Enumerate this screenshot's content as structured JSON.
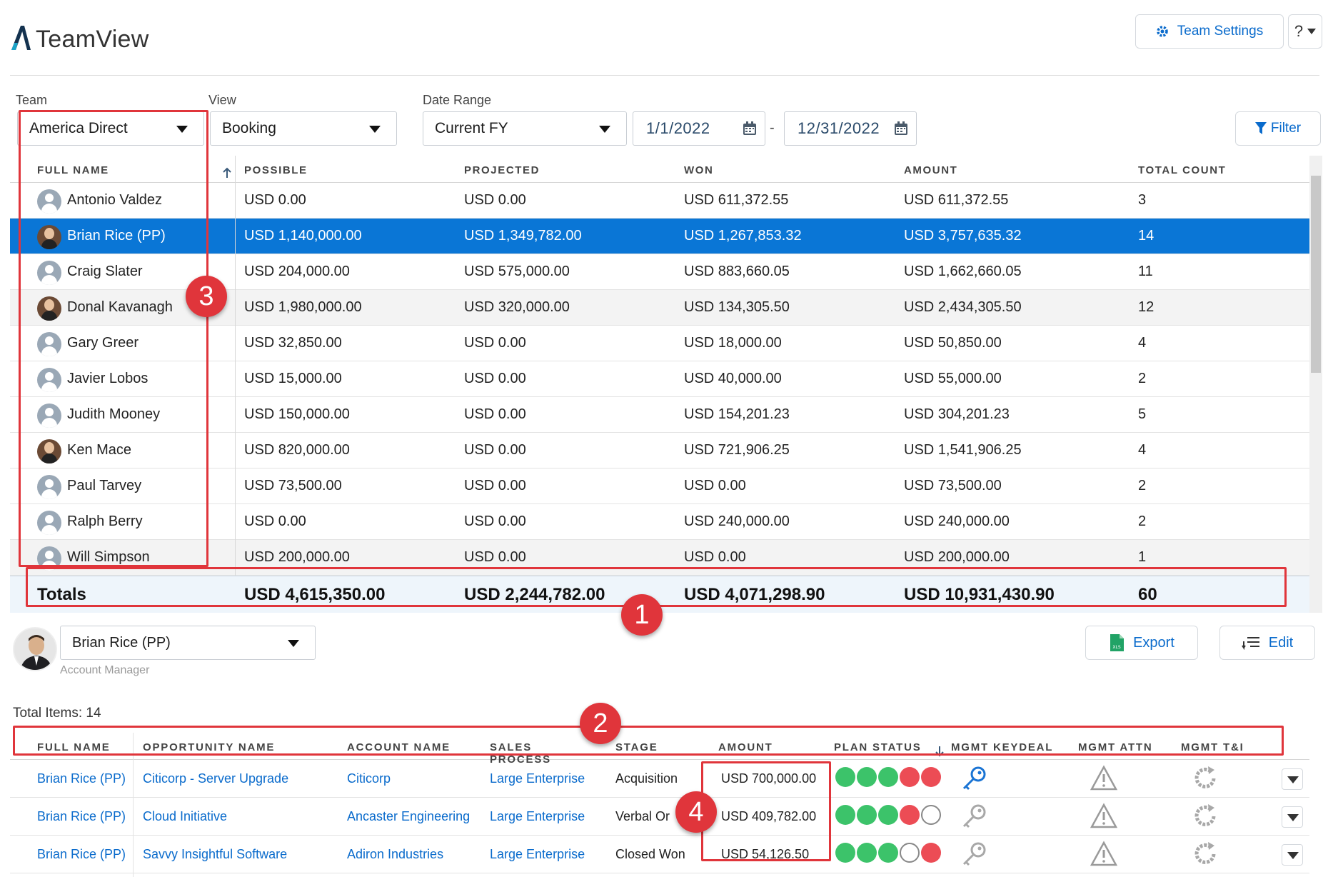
{
  "app": {
    "title": "TeamView"
  },
  "header": {
    "team_settings_label": "Team Settings",
    "help_label": "?"
  },
  "filters": {
    "team_label": "Team",
    "team_value": "America Direct",
    "view_label": "View",
    "view_value": "Booking",
    "date_range_label": "Date Range",
    "date_range_value": "Current FY",
    "date_from": "1/1/2022",
    "date_sep": "-",
    "date_to": "12/31/2022",
    "filter_label": "Filter"
  },
  "grid": {
    "columns": [
      "FULL NAME",
      "POSSIBLE",
      "PROJECTED",
      "WON",
      "AMOUNT",
      "TOTAL COUNT"
    ],
    "rows": [
      {
        "name": "Antonio Valdez",
        "possible": "USD 0.00",
        "projected": "USD 0.00",
        "won": "USD 611,372.55",
        "amount": "USD 611,372.55",
        "count": "3"
      },
      {
        "name": "Brian Rice (PP)",
        "possible": "USD 1,140,000.00",
        "projected": "USD 1,349,782.00",
        "won": "USD 1,267,853.32",
        "amount": "USD 3,757,635.32",
        "count": "14"
      },
      {
        "name": "Craig Slater",
        "possible": "USD 204,000.00",
        "projected": "USD 575,000.00",
        "won": "USD 883,660.05",
        "amount": "USD 1,662,660.05",
        "count": "11"
      },
      {
        "name": "Donal Kavanagh",
        "possible": "USD 1,980,000.00",
        "projected": "USD 320,000.00",
        "won": "USD 134,305.50",
        "amount": "USD 2,434,305.50",
        "count": "12"
      },
      {
        "name": "Gary Greer",
        "possible": "USD 32,850.00",
        "projected": "USD 0.00",
        "won": "USD 18,000.00",
        "amount": "USD 50,850.00",
        "count": "4"
      },
      {
        "name": "Javier Lobos",
        "possible": "USD 15,000.00",
        "projected": "USD 0.00",
        "won": "USD 40,000.00",
        "amount": "USD 55,000.00",
        "count": "2"
      },
      {
        "name": "Judith Mooney",
        "possible": "USD 150,000.00",
        "projected": "USD 0.00",
        "won": "USD 154,201.23",
        "amount": "USD 304,201.23",
        "count": "5"
      },
      {
        "name": "Ken Mace",
        "possible": "USD 820,000.00",
        "projected": "USD 0.00",
        "won": "USD 721,906.25",
        "amount": "USD 1,541,906.25",
        "count": "4"
      },
      {
        "name": "Paul Tarvey",
        "possible": "USD 73,500.00",
        "projected": "USD 0.00",
        "won": "USD 0.00",
        "amount": "USD 73,500.00",
        "count": "2"
      },
      {
        "name": "Ralph Berry",
        "possible": "USD 0.00",
        "projected": "USD 0.00",
        "won": "USD 240,000.00",
        "amount": "USD 240,000.00",
        "count": "2"
      },
      {
        "name": "Will Simpson",
        "possible": "USD 200,000.00",
        "projected": "USD 0.00",
        "won": "USD 0.00",
        "amount": "USD 200,000.00",
        "count": "1"
      }
    ],
    "totals": {
      "label": "Totals",
      "possible": "USD 4,615,350.00",
      "projected": "USD 2,244,782.00",
      "won": "USD 4,071,298.90",
      "amount": "USD 10,931,430.90",
      "count": "60"
    }
  },
  "annotations": {
    "one": "1",
    "two": "2",
    "three": "3",
    "four": "4"
  },
  "detail": {
    "selected_user": "Brian Rice (PP)",
    "role": "Account Manager",
    "export_label": "Export",
    "edit_label": "Edit",
    "total_items": "Total Items: 14",
    "columns": [
      "FULL NAME",
      "OPPORTUNITY NAME",
      "ACCOUNT NAME",
      "SALES PROCESS",
      "STAGE",
      "AMOUNT",
      "PLAN STATUS",
      "MGMT KEYDEAL",
      "MGMT ATTN",
      "MGMT T&I"
    ],
    "rows": [
      {
        "name": "Brian Rice (PP)",
        "opportunity": "Citicorp - Server Upgrade",
        "account": "Citicorp",
        "process": "Large Enterprise",
        "stage": "Acquisition",
        "amount": "USD 700,000.00",
        "plan": [
          "green",
          "green",
          "green",
          "red",
          "red"
        ]
      },
      {
        "name": "Brian Rice (PP)",
        "opportunity": "Cloud Initiative",
        "account": "Ancaster Engineering",
        "process": "Large Enterprise",
        "stage": "Verbal Or",
        "amount": "USD 409,782.00",
        "plan": [
          "green",
          "green",
          "green",
          "red",
          "empty"
        ]
      },
      {
        "name": "Brian Rice (PP)",
        "opportunity": "Savvy Insightful Software",
        "account": "Adiron Industries",
        "process": "Large Enterprise",
        "stage": "Closed Won",
        "amount": "USD 54,126.50",
        "plan": [
          "green",
          "green",
          "green",
          "empty",
          "red"
        ]
      }
    ]
  }
}
